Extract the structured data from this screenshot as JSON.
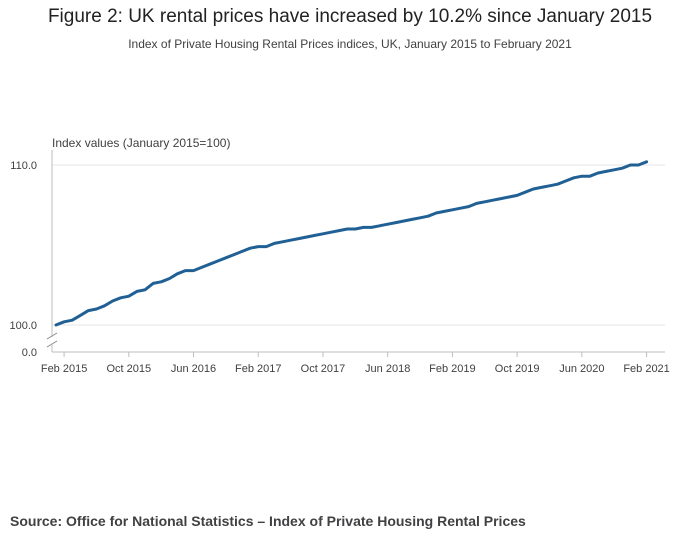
{
  "chart_data": {
    "type": "line",
    "title": "Figure 2: UK rental prices have increased by 10.2% since January 2015",
    "subtitle": "Index of Private Housing Rental Prices indices, UK, January 2015 to February 2021",
    "ylabel": "Index values (January 2015=100)",
    "xlabel": "",
    "ylim": [
      100,
      110.2
    ],
    "axis_break": true,
    "y_ticks": [
      {
        "value": 110.0,
        "label": "110.0"
      },
      {
        "value": 100.0,
        "label": "100.0"
      },
      {
        "value": 0.0,
        "label": "0.0"
      }
    ],
    "x_ticks": [
      "Feb 2015",
      "Oct 2015",
      "Jun 2016",
      "Feb 2017",
      "Oct 2017",
      "Jun 2018",
      "Feb 2019",
      "Oct 2019",
      "Jun 2020",
      "Feb 2021"
    ],
    "series": [
      {
        "name": "Index of Private Housing Rental Prices",
        "color": "#206095",
        "start": "Jan 2015",
        "values": [
          100.0,
          100.2,
          100.3,
          100.6,
          100.9,
          101.0,
          101.2,
          101.5,
          101.7,
          101.8,
          102.1,
          102.2,
          102.6,
          102.7,
          102.9,
          103.2,
          103.4,
          103.4,
          103.6,
          103.8,
          104.0,
          104.2,
          104.4,
          104.6,
          104.8,
          104.9,
          104.9,
          105.1,
          105.2,
          105.3,
          105.4,
          105.5,
          105.6,
          105.7,
          105.8,
          105.9,
          106.0,
          106.0,
          106.1,
          106.1,
          106.2,
          106.3,
          106.4,
          106.5,
          106.6,
          106.7,
          106.8,
          107.0,
          107.1,
          107.2,
          107.3,
          107.4,
          107.6,
          107.7,
          107.8,
          107.9,
          108.0,
          108.1,
          108.3,
          108.5,
          108.6,
          108.7,
          108.8,
          109.0,
          109.2,
          109.3,
          109.3,
          109.5,
          109.6,
          109.7,
          109.8,
          110.0,
          110.0,
          110.2
        ]
      }
    ]
  },
  "footer": {
    "source": "Source: Office for National Statistics – Index of Private Housing Rental Prices"
  }
}
